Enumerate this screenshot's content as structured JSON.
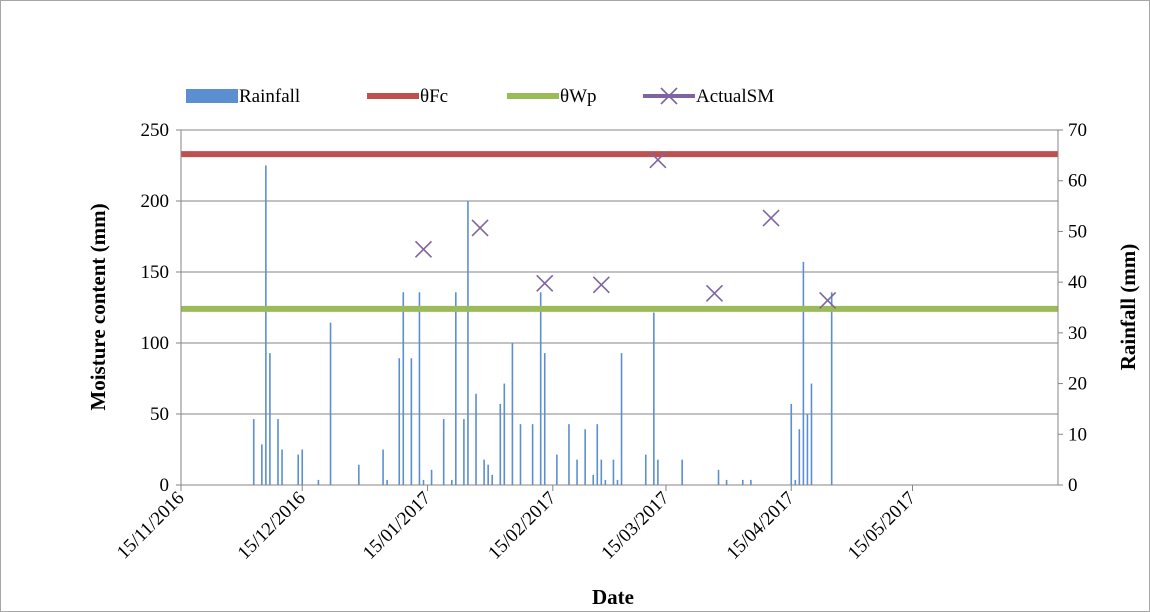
{
  "chart_data": {
    "type": "line",
    "title": "",
    "xlabel": "Date",
    "ylabel": "Moisture content (mm)",
    "y2label": "Rainfall (mm)",
    "x_range": [
      "2016-11-15",
      "2017-06-20"
    ],
    "ylim": [
      0,
      250
    ],
    "y2lim": [
      0,
      70
    ],
    "x_ticks": [
      "15/11/2016",
      "15/12/2016",
      "15/01/2017",
      "15/02/2017",
      "15/03/2017",
      "15/04/2017",
      "15/05/2017"
    ],
    "x_tick_dates": [
      "2016-11-15",
      "2016-12-15",
      "2017-01-15",
      "2017-02-15",
      "2017-03-15",
      "2017-04-15",
      "2017-05-15"
    ],
    "y_ticks": [
      "0",
      "50",
      "100",
      "150",
      "200",
      "250"
    ],
    "y2_ticks": [
      "0",
      "10",
      "20",
      "30",
      "40",
      "50",
      "60",
      "70"
    ],
    "grid": true,
    "legend_position": "top-left",
    "series": [
      {
        "name": "Rainfall",
        "type": "bar",
        "axis": "right",
        "color": "#5b8fd0",
        "points": [
          [
            "2016-12-03",
            13
          ],
          [
            "2016-12-05",
            8
          ],
          [
            "2016-12-06",
            63
          ],
          [
            "2016-12-07",
            26
          ],
          [
            "2016-12-09",
            13
          ],
          [
            "2016-12-10",
            7
          ],
          [
            "2016-12-14",
            6
          ],
          [
            "2016-12-15",
            7
          ],
          [
            "2016-12-19",
            1
          ],
          [
            "2016-12-22",
            32
          ],
          [
            "2016-12-29",
            4
          ],
          [
            "2017-01-04",
            7
          ],
          [
            "2017-01-05",
            1
          ],
          [
            "2017-01-08",
            25
          ],
          [
            "2017-01-09",
            38
          ],
          [
            "2017-01-11",
            25
          ],
          [
            "2017-01-13",
            38
          ],
          [
            "2017-01-14",
            1
          ],
          [
            "2017-01-16",
            3
          ],
          [
            "2017-01-19",
            13
          ],
          [
            "2017-01-21",
            1
          ],
          [
            "2017-01-22",
            38
          ],
          [
            "2017-01-24",
            13
          ],
          [
            "2017-01-25",
            56
          ],
          [
            "2017-01-27",
            18
          ],
          [
            "2017-01-29",
            5
          ],
          [
            "2017-01-30",
            4
          ],
          [
            "2017-01-31",
            2
          ],
          [
            "2017-02-02",
            16
          ],
          [
            "2017-02-03",
            20
          ],
          [
            "2017-02-05",
            28
          ],
          [
            "2017-02-07",
            12
          ],
          [
            "2017-02-10",
            12
          ],
          [
            "2017-02-12",
            38
          ],
          [
            "2017-02-13",
            26
          ],
          [
            "2017-02-16",
            6
          ],
          [
            "2017-02-19",
            12
          ],
          [
            "2017-02-21",
            5
          ],
          [
            "2017-02-23",
            11
          ],
          [
            "2017-02-25",
            2
          ],
          [
            "2017-02-26",
            12
          ],
          [
            "2017-02-27",
            5
          ],
          [
            "2017-02-28",
            1
          ],
          [
            "2017-03-02",
            5
          ],
          [
            "2017-03-03",
            1
          ],
          [
            "2017-03-04",
            26
          ],
          [
            "2017-03-10",
            6
          ],
          [
            "2017-03-12",
            34
          ],
          [
            "2017-03-13",
            5
          ],
          [
            "2017-03-19",
            5
          ],
          [
            "2017-03-28",
            3
          ],
          [
            "2017-03-30",
            1
          ],
          [
            "2017-04-03",
            1
          ],
          [
            "2017-04-05",
            1
          ],
          [
            "2017-04-15",
            16
          ],
          [
            "2017-04-16",
            1
          ],
          [
            "2017-04-17",
            11
          ],
          [
            "2017-04-18",
            44
          ],
          [
            "2017-04-19",
            14
          ],
          [
            "2017-04-20",
            20
          ],
          [
            "2017-04-25",
            38
          ]
        ]
      },
      {
        "name": "θFc",
        "type": "line",
        "axis": "left",
        "color": "#c0504d",
        "points": [
          [
            "2016-11-15",
            233
          ],
          [
            "2017-06-20",
            233
          ]
        ]
      },
      {
        "name": "θWp",
        "type": "line",
        "axis": "left",
        "color": "#9bbb59",
        "points": [
          [
            "2016-11-15",
            124
          ],
          [
            "2017-06-20",
            124
          ]
        ]
      },
      {
        "name": "ActualSM",
        "type": "scatter",
        "axis": "left",
        "color": "#8064a2",
        "marker": "x",
        "points": [
          [
            "2017-01-14",
            166
          ],
          [
            "2017-01-28",
            181
          ],
          [
            "2017-02-13",
            142
          ],
          [
            "2017-02-27",
            141
          ],
          [
            "2017-03-13",
            229
          ],
          [
            "2017-03-27",
            135
          ],
          [
            "2017-04-10",
            188
          ],
          [
            "2017-04-24",
            130
          ]
        ]
      }
    ]
  }
}
